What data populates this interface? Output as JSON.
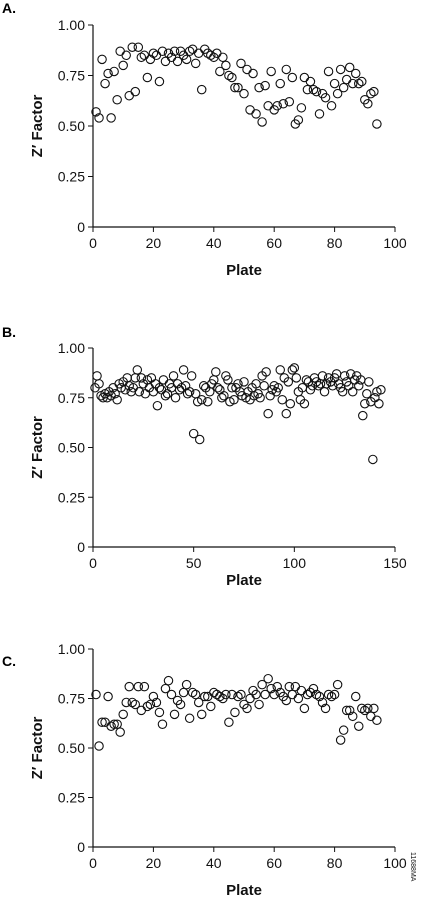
{
  "figure_code": "11688MA",
  "chart_data": [
    {
      "type": "scatter",
      "panel_label": "A.",
      "xlabel": "Plate",
      "ylabel": "Z′ Factor",
      "xlim": [
        0,
        100
      ],
      "ylim": [
        0,
        1
      ],
      "xticks": [
        "0",
        "20",
        "40",
        "60",
        "80",
        "100"
      ],
      "yticks": [
        "0",
        "0.25",
        "0.50",
        "0.75",
        "1.00"
      ],
      "grid": false,
      "x": [
        1,
        2,
        3,
        4,
        5,
        6,
        7,
        8,
        9,
        10,
        11,
        12,
        13,
        14,
        15,
        16,
        17,
        18,
        19,
        20,
        21,
        22,
        23,
        24,
        25,
        26,
        27,
        28,
        29,
        30,
        31,
        32,
        33,
        34,
        35,
        36,
        37,
        38,
        39,
        40,
        41,
        42,
        43,
        44,
        45,
        46,
        47,
        48,
        49,
        50,
        51,
        52,
        53,
        54,
        55,
        56,
        57,
        58,
        59,
        60,
        61,
        62,
        63,
        64,
        65,
        66,
        67,
        68,
        69,
        70,
        71,
        72,
        73,
        74,
        75,
        76,
        77,
        78,
        79,
        80,
        81,
        82,
        83,
        84,
        85,
        86,
        87,
        88,
        89,
        90,
        91,
        92,
        93,
        94
      ],
      "y": [
        0.57,
        0.54,
        0.83,
        0.71,
        0.76,
        0.54,
        0.77,
        0.63,
        0.87,
        0.8,
        0.85,
        0.65,
        0.89,
        0.67,
        0.89,
        0.84,
        0.85,
        0.74,
        0.83,
        0.86,
        0.85,
        0.72,
        0.87,
        0.82,
        0.86,
        0.84,
        0.87,
        0.82,
        0.87,
        0.85,
        0.83,
        0.87,
        0.88,
        0.81,
        0.86,
        0.68,
        0.88,
        0.86,
        0.85,
        0.84,
        0.86,
        0.77,
        0.84,
        0.8,
        0.75,
        0.74,
        0.69,
        0.69,
        0.81,
        0.66,
        0.78,
        0.58,
        0.76,
        0.56,
        0.69,
        0.52,
        0.7,
        0.6,
        0.77,
        0.58,
        0.6,
        0.71,
        0.61,
        0.78,
        0.62,
        0.74,
        0.51,
        0.53,
        0.59,
        0.74,
        0.68,
        0.72,
        0.68,
        0.67,
        0.56,
        0.66,
        0.64,
        0.77,
        0.6,
        0.71,
        0.66,
        0.78,
        0.69,
        0.73,
        0.79,
        0.71,
        0.76,
        0.71,
        0.72,
        0.63,
        0.61,
        0.66,
        0.67,
        0.51
      ]
    },
    {
      "type": "scatter",
      "panel_label": "B.",
      "xlabel": "Plate",
      "ylabel": "Z′ Factor",
      "xlim": [
        0,
        150
      ],
      "ylim": [
        0,
        1
      ],
      "xticks": [
        "0",
        "50",
        "100",
        "150"
      ],
      "yticks": [
        "0",
        "0.25",
        "0.50",
        "0.75",
        "1.00"
      ],
      "grid": false,
      "x": [
        1,
        2,
        3,
        4,
        5,
        6,
        7,
        8,
        9,
        10,
        11,
        12,
        13,
        14,
        15,
        16,
        17,
        18,
        19,
        20,
        21,
        22,
        23,
        24,
        25,
        26,
        27,
        28,
        29,
        30,
        31,
        32,
        33,
        34,
        35,
        36,
        37,
        38,
        39,
        40,
        41,
        42,
        43,
        44,
        45,
        46,
        47,
        48,
        49,
        50,
        51,
        52,
        53,
        54,
        55,
        56,
        57,
        58,
        59,
        60,
        61,
        62,
        63,
        64,
        65,
        66,
        67,
        68,
        69,
        70,
        71,
        72,
        73,
        74,
        75,
        76,
        77,
        78,
        79,
        80,
        81,
        82,
        83,
        84,
        85,
        86,
        87,
        88,
        89,
        90,
        91,
        92,
        93,
        94,
        95,
        96,
        97,
        98,
        99,
        100,
        101,
        102,
        103,
        104,
        105,
        106,
        107,
        108,
        109,
        110,
        111,
        112,
        113,
        114,
        115,
        116,
        117,
        118,
        119,
        120,
        121,
        122,
        123,
        124,
        125,
        126,
        127,
        128,
        129,
        130,
        131,
        132,
        133,
        134,
        135,
        136,
        137,
        138,
        139,
        140,
        141,
        142,
        143
      ],
      "y": [
        0.8,
        0.86,
        0.82,
        0.76,
        0.75,
        0.77,
        0.75,
        0.78,
        0.76,
        0.8,
        0.77,
        0.74,
        0.82,
        0.8,
        0.83,
        0.79,
        0.85,
        0.81,
        0.78,
        0.8,
        0.85,
        0.89,
        0.78,
        0.85,
        0.82,
        0.77,
        0.84,
        0.8,
        0.85,
        0.78,
        0.82,
        0.71,
        0.8,
        0.79,
        0.84,
        0.76,
        0.77,
        0.82,
        0.8,
        0.86,
        0.75,
        0.82,
        0.79,
        0.8,
        0.89,
        0.81,
        0.77,
        0.78,
        0.86,
        0.57,
        0.77,
        0.73,
        0.54,
        0.74,
        0.81,
        0.8,
        0.73,
        0.78,
        0.82,
        0.84,
        0.88,
        0.8,
        0.79,
        0.75,
        0.76,
        0.86,
        0.84,
        0.73,
        0.8,
        0.74,
        0.8,
        0.82,
        0.78,
        0.76,
        0.83,
        0.75,
        0.78,
        0.74,
        0.8,
        0.76,
        0.82,
        0.77,
        0.75,
        0.86,
        0.81,
        0.88,
        0.67,
        0.76,
        0.79,
        0.81,
        0.78,
        0.8,
        0.89,
        0.74,
        0.85,
        0.67,
        0.83,
        0.72,
        0.89,
        0.9,
        0.85,
        0.78,
        0.74,
        0.8,
        0.72,
        0.84,
        0.83,
        0.79,
        0.81,
        0.85,
        0.83,
        0.81,
        0.82,
        0.86,
        0.78,
        0.82,
        0.85,
        0.83,
        0.81,
        0.85,
        0.87,
        0.82,
        0.8,
        0.78,
        0.86,
        0.83,
        0.81,
        0.87,
        0.78,
        0.84,
        0.86,
        0.81,
        0.84,
        0.66,
        0.72,
        0.77,
        0.83,
        0.73,
        0.44,
        0.75,
        0.78,
        0.72,
        0.79
      ]
    },
    {
      "type": "scatter",
      "panel_label": "C.",
      "xlabel": "Plate",
      "ylabel": "Z′ Factor",
      "xlim": [
        0,
        100
      ],
      "ylim": [
        0,
        1
      ],
      "xticks": [
        "0",
        "20",
        "40",
        "60",
        "80",
        "100"
      ],
      "yticks": [
        "0",
        "0.25",
        "0.50",
        "0.75",
        "1.00"
      ],
      "grid": false,
      "x": [
        1,
        2,
        3,
        4,
        5,
        6,
        7,
        8,
        9,
        10,
        11,
        12,
        13,
        14,
        15,
        16,
        17,
        18,
        19,
        20,
        21,
        22,
        23,
        24,
        25,
        26,
        27,
        28,
        29,
        30,
        31,
        32,
        33,
        34,
        35,
        36,
        37,
        38,
        39,
        40,
        41,
        42,
        43,
        44,
        45,
        46,
        47,
        48,
        49,
        50,
        51,
        52,
        53,
        54,
        55,
        56,
        57,
        58,
        59,
        60,
        61,
        62,
        63,
        64,
        65,
        66,
        67,
        68,
        69,
        70,
        71,
        72,
        73,
        74,
        75,
        76,
        77,
        78,
        79,
        80,
        81,
        82,
        83,
        84,
        85,
        86,
        87,
        88,
        89,
        90,
        91,
        92,
        93,
        94
      ],
      "y": [
        0.77,
        0.51,
        0.63,
        0.63,
        0.76,
        0.61,
        0.62,
        0.62,
        0.58,
        0.67,
        0.73,
        0.81,
        0.73,
        0.72,
        0.81,
        0.69,
        0.81,
        0.71,
        0.72,
        0.76,
        0.73,
        0.68,
        0.62,
        0.8,
        0.84,
        0.77,
        0.67,
        0.74,
        0.72,
        0.78,
        0.82,
        0.65,
        0.78,
        0.77,
        0.73,
        0.67,
        0.76,
        0.76,
        0.71,
        0.78,
        0.77,
        0.76,
        0.75,
        0.77,
        0.63,
        0.77,
        0.68,
        0.76,
        0.77,
        0.72,
        0.7,
        0.75,
        0.79,
        0.77,
        0.72,
        0.82,
        0.77,
        0.85,
        0.8,
        0.77,
        0.81,
        0.78,
        0.76,
        0.74,
        0.81,
        0.77,
        0.81,
        0.75,
        0.79,
        0.7,
        0.77,
        0.78,
        0.8,
        0.77,
        0.76,
        0.73,
        0.7,
        0.77,
        0.76,
        0.77,
        0.82,
        0.54,
        0.59,
        0.69,
        0.69,
        0.66,
        0.76,
        0.61,
        0.7,
        0.69,
        0.7,
        0.66,
        0.7,
        0.64
      ]
    }
  ]
}
